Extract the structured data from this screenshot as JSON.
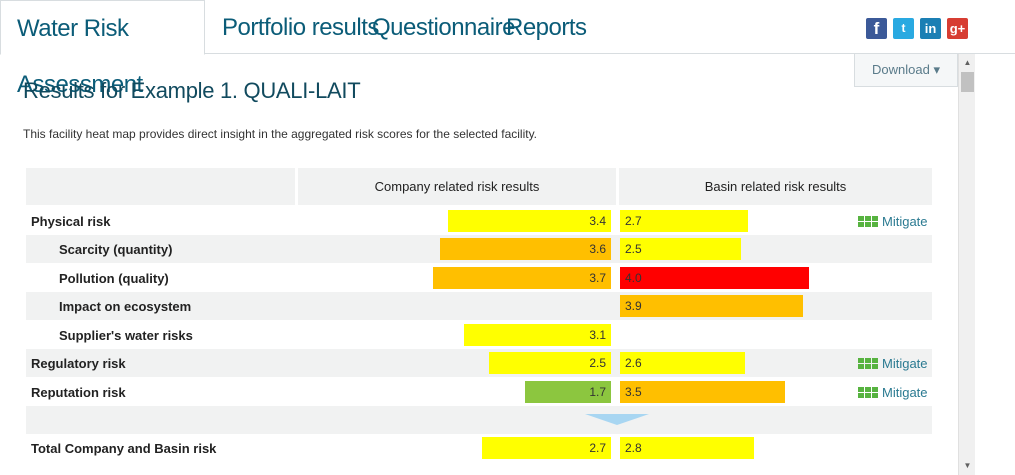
{
  "nav": {
    "tabs": [
      {
        "label": "Water Risk Assessment",
        "active": true
      },
      {
        "label": "Portfolio results"
      },
      {
        "label": "Questionnaire"
      },
      {
        "label": "Reports"
      }
    ],
    "social": [
      {
        "icon": "facebook-icon",
        "glyph": "f",
        "color": "#3b5998"
      },
      {
        "icon": "twitter-icon",
        "glyph": "t",
        "color": "#29a9e1"
      },
      {
        "icon": "linkedin-icon",
        "glyph": "in",
        "color": "#1b7fb4"
      },
      {
        "icon": "google-plus-icon",
        "glyph": "g+",
        "color": "#d73d32"
      }
    ]
  },
  "download": {
    "label": "Download ▾"
  },
  "page": {
    "title": "Results for Example 1. QUALI-LAIT",
    "intro": "This facility heat map provides direct insight in the aggregated risk scores for the selected facility."
  },
  "table": {
    "headers": {
      "company": "Company related risk results",
      "basin": "Basin related risk results"
    },
    "mitigate_label": "Mitigate",
    "rows": [
      {
        "label": "Physical risk",
        "company": "3.4",
        "company_color": "#ffff00",
        "basin": "2.7",
        "basin_color": "#ffff00",
        "mitigate": true
      },
      {
        "label": "Scarcity (quantity)",
        "company": "3.6",
        "company_color": "#ffbf00",
        "basin": "2.5",
        "basin_color": "#ffff00"
      },
      {
        "label": "Pollution (quality)",
        "company": "3.7",
        "company_color": "#ffbf00",
        "basin": "4.0",
        "basin_color": "#ff0000"
      },
      {
        "label": "Impact on ecosystem",
        "company": "",
        "basin": "3.9",
        "basin_color": "#ffbf00"
      },
      {
        "label": "Supplier's water risks",
        "company": "3.1",
        "company_color": "#ffff00",
        "basin": ""
      },
      {
        "label": "Regulatory risk",
        "company": "2.5",
        "company_color": "#ffff00",
        "basin": "2.6",
        "basin_color": "#ffff00",
        "mitigate": true
      },
      {
        "label": "Reputation risk",
        "company": "1.7",
        "company_color": "#8cc63f",
        "basin": "3.5",
        "basin_color": "#ffbf00",
        "mitigate": true
      }
    ],
    "total": {
      "label": "Total Company and Basin risk",
      "company": "2.7",
      "company_color": "#ffff00",
      "basin": "2.8",
      "basin_color": "#ffff00"
    }
  }
}
